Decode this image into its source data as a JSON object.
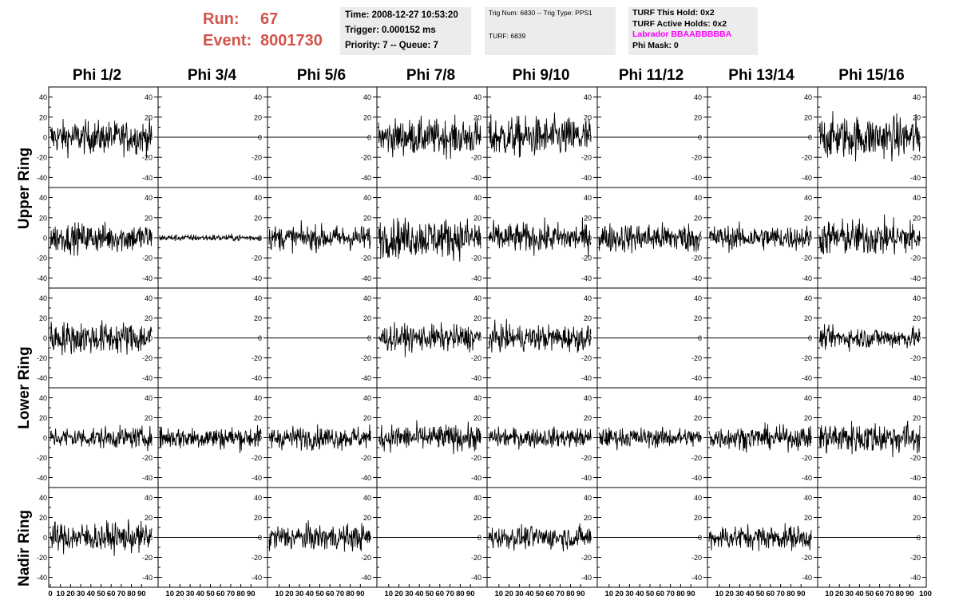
{
  "header": {
    "run_label": "Run:",
    "run_value": "67",
    "event_label": "Event:",
    "event_value": "8001730"
  },
  "info_box_1": {
    "time": "Time: 2008-12-27 10:53:20",
    "trigger": "Trigger: 0.000152 ms",
    "priority": "Priority: 7 -- Queue: 7"
  },
  "info_box_2": {
    "trig": "Trig Num: 6830 -- Trig Type: PPS1",
    "turf": "TURF: 6839"
  },
  "info_box_3": {
    "this_hold": "TURF This Hold: 0x2",
    "active_holds": "TURF Active Holds: 0x2",
    "labrador": "Labrador BBAABBBBBA",
    "phi_mask": "Phi Mask: 0"
  },
  "chart_data": {
    "type": "line",
    "description_grid": "5 rows x 8 columns of waveform panels",
    "columns": [
      "Phi 1/2",
      "Phi 3/4",
      "Phi 5/6",
      "Phi 7/8",
      "Phi 9/10",
      "Phi 11/12",
      "Phi 13/14",
      "Phi 15/16"
    ],
    "ring_labels": [
      "Upper Ring",
      "Lower Ring",
      "Nadir Ring"
    ],
    "xlim": [
      0,
      100
    ],
    "ylim": [
      -50,
      50
    ],
    "x_ticks": [
      0,
      10,
      20,
      30,
      40,
      50,
      60,
      70,
      80,
      90
    ],
    "x_tick_labels_last": "100",
    "y_ticks": [
      -40,
      -20,
      0,
      20,
      40
    ],
    "panels": [
      [
        20,
        0,
        0,
        22,
        25,
        0,
        0,
        26
      ],
      [
        18,
        4,
        15,
        24,
        18,
        18,
        15,
        22
      ],
      [
        20,
        0,
        0,
        16,
        16,
        0,
        0,
        13
      ],
      [
        13,
        14,
        14,
        16,
        12,
        12,
        14,
        20
      ],
      [
        18,
        0,
        16,
        0,
        14,
        0,
        15,
        0
      ]
    ],
    "panel_amplitude_unit": "approximate peak amplitude (0 = flat channel)",
    "grid": false,
    "line_color": "#000000"
  }
}
